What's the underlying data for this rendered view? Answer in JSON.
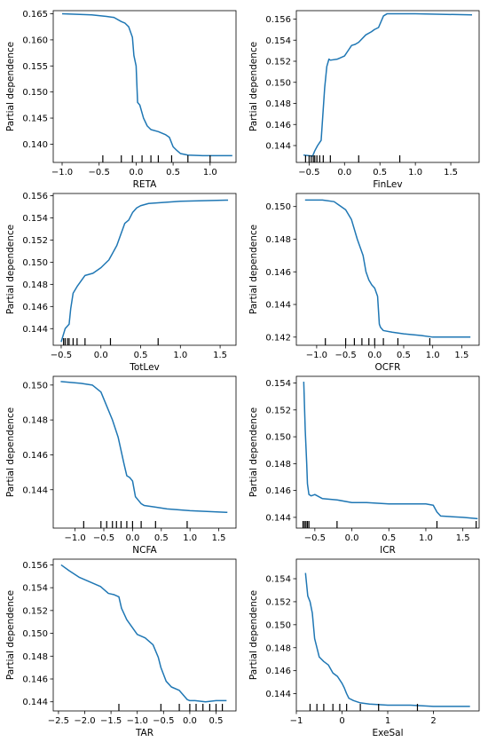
{
  "chart_data": [
    {
      "type": "line",
      "xlabel": "RETA",
      "ylabel": "Partial dependence",
      "xlim": [
        -1.12,
        1.35
      ],
      "ylim": [
        0.1365,
        0.1656
      ],
      "xticks": [
        -1.0,
        -0.5,
        0.0,
        0.5,
        1.0
      ],
      "xtick_labels": [
        "−1.0",
        "−0.5",
        "0.0",
        "0.5",
        "1.0"
      ],
      "yticks": [
        0.14,
        0.145,
        0.15,
        0.155,
        0.16,
        0.165
      ],
      "ytick_labels": [
        "0.140",
        "0.145",
        "0.150",
        "0.155",
        "0.160",
        "0.165"
      ],
      "series": [
        {
          "x": [
            -1.0,
            -0.6,
            -0.4,
            -0.3,
            -0.2,
            -0.15,
            -0.1,
            -0.05,
            -0.03,
            0.0,
            0.02,
            0.05,
            0.1,
            0.15,
            0.2,
            0.3,
            0.4,
            0.45,
            0.5,
            0.55,
            0.6,
            0.7,
            0.9,
            1.0,
            1.3
          ],
          "y": [
            0.165,
            0.1648,
            0.1645,
            0.1643,
            0.1635,
            0.1632,
            0.1625,
            0.1605,
            0.157,
            0.155,
            0.148,
            0.1475,
            0.145,
            0.1435,
            0.1428,
            0.1424,
            0.1418,
            0.1413,
            0.1395,
            0.1388,
            0.1382,
            0.1379,
            0.1378,
            0.1378,
            0.1378
          ]
        }
      ],
      "rug": [
        -0.45,
        -0.2,
        -0.05,
        0.08,
        0.2,
        0.3,
        0.48,
        0.7,
        1.0
      ]
    },
    {
      "type": "line",
      "xlabel": "FinLev",
      "ylabel": "Partial dependence",
      "xlim": [
        -0.68,
        1.9
      ],
      "ylim": [
        0.1424,
        0.1568
      ],
      "xticks": [
        -0.5,
        0.0,
        0.5,
        1.0,
        1.5
      ],
      "xtick_labels": [
        "−0.5",
        "0.0",
        "0.5",
        "1.0",
        "1.5"
      ],
      "yticks": [
        0.144,
        0.146,
        0.148,
        0.15,
        0.152,
        0.154,
        0.156
      ],
      "ytick_labels": [
        "0.144",
        "0.146",
        "0.148",
        "0.150",
        "0.152",
        "0.154",
        "0.156"
      ],
      "series": [
        {
          "x": [
            -0.58,
            -0.45,
            -0.42,
            -0.38,
            -0.33,
            -0.3,
            -0.28,
            -0.25,
            -0.22,
            -0.2,
            -0.1,
            0.0,
            0.05,
            0.1,
            0.15,
            0.2,
            0.3,
            0.38,
            0.42,
            0.48,
            0.55,
            0.6,
            1.0,
            1.8
          ],
          "y": [
            0.1431,
            0.143,
            0.1435,
            0.144,
            0.1445,
            0.1475,
            0.1495,
            0.1515,
            0.1522,
            0.1521,
            0.1522,
            0.1525,
            0.153,
            0.1535,
            0.1536,
            0.1538,
            0.1545,
            0.1548,
            0.155,
            0.1552,
            0.1563,
            0.1565,
            0.1565,
            0.1564
          ]
        }
      ],
      "rug": [
        -0.55,
        -0.5,
        -0.47,
        -0.44,
        -0.42,
        -0.39,
        -0.35,
        -0.3,
        -0.2,
        0.2,
        0.78
      ]
    },
    {
      "type": "line",
      "xlabel": "TotLev",
      "ylabel": "Partial dependence",
      "xlim": [
        -0.6,
        1.7
      ],
      "ylim": [
        0.1425,
        0.1562
      ],
      "xticks": [
        -0.5,
        0.0,
        0.5,
        1.0,
        1.5
      ],
      "xtick_labels": [
        "−0.5",
        "0.0",
        "0.5",
        "1.0",
        "1.5"
      ],
      "yticks": [
        0.144,
        0.146,
        0.148,
        0.15,
        0.152,
        0.154,
        0.156
      ],
      "ytick_labels": [
        "0.144",
        "0.146",
        "0.148",
        "0.150",
        "0.152",
        "0.154",
        "0.156"
      ],
      "series": [
        {
          "x": [
            -0.5,
            -0.45,
            -0.4,
            -0.38,
            -0.35,
            -0.3,
            -0.2,
            -0.1,
            0.0,
            0.1,
            0.2,
            0.25,
            0.3,
            0.35,
            0.4,
            0.45,
            0.5,
            0.6,
            0.8,
            1.0,
            1.6
          ],
          "y": [
            0.1428,
            0.144,
            0.1444,
            0.1458,
            0.1472,
            0.1478,
            0.1488,
            0.149,
            0.1495,
            0.1502,
            0.1515,
            0.1525,
            0.1535,
            0.1538,
            0.1545,
            0.1549,
            0.1551,
            0.1553,
            0.1554,
            0.1555,
            0.1556
          ]
        }
      ],
      "rug": [
        -0.47,
        -0.45,
        -0.42,
        -0.4,
        -0.35,
        -0.3,
        -0.2,
        0.12,
        0.72
      ]
    },
    {
      "type": "line",
      "xlabel": "OCFR",
      "ylabel": "Partial dependence",
      "xlim": [
        -1.35,
        1.8
      ],
      "ylim": [
        0.1415,
        0.1508
      ],
      "xticks": [
        -1.0,
        -0.5,
        0.0,
        0.5,
        1.0,
        1.5
      ],
      "xtick_labels": [
        "−1.0",
        "−0.5",
        "0.0",
        "0.5",
        "1.0",
        "1.5"
      ],
      "yticks": [
        0.142,
        0.144,
        0.146,
        0.148,
        0.15
      ],
      "ytick_labels": [
        "0.142",
        "0.144",
        "0.146",
        "0.148",
        "0.150"
      ],
      "series": [
        {
          "x": [
            -1.2,
            -0.9,
            -0.7,
            -0.5,
            -0.4,
            -0.3,
            -0.2,
            -0.15,
            -0.1,
            -0.05,
            0.0,
            0.05,
            0.08,
            0.1,
            0.15,
            0.3,
            0.5,
            0.8,
            1.0,
            1.65
          ],
          "y": [
            0.1504,
            0.1504,
            0.1503,
            0.1498,
            0.1492,
            0.148,
            0.147,
            0.146,
            0.1455,
            0.1452,
            0.145,
            0.1445,
            0.1428,
            0.1426,
            0.1424,
            0.1423,
            0.1422,
            0.1421,
            0.142,
            0.142
          ]
        }
      ],
      "rug": [
        -0.85,
        -0.5,
        -0.35,
        -0.22,
        -0.1,
        0.0,
        0.15,
        0.4,
        0.95
      ]
    },
    {
      "type": "line",
      "xlabel": "NCFA",
      "ylabel": "Partial dependence",
      "xlim": [
        -1.38,
        1.8
      ],
      "ylim": [
        0.1418,
        0.1505
      ],
      "xticks": [
        -1.0,
        -0.5,
        0.0,
        0.5,
        1.0,
        1.5
      ],
      "xtick_labels": [
        "−1.0",
        "−0.5",
        "0.0",
        "0.5",
        "1.0",
        "1.5"
      ],
      "yticks": [
        0.144,
        0.146,
        0.148,
        0.15
      ],
      "ytick_labels": [
        "0.144",
        "0.146",
        "0.148",
        "0.150"
      ],
      "series": [
        {
          "x": [
            -1.25,
            -0.9,
            -0.7,
            -0.55,
            -0.45,
            -0.35,
            -0.25,
            -0.15,
            -0.1,
            -0.05,
            0.0,
            0.05,
            0.1,
            0.15,
            0.2,
            0.4,
            0.6,
            1.0,
            1.65
          ],
          "y": [
            0.1502,
            0.1501,
            0.15,
            0.1496,
            0.1488,
            0.148,
            0.147,
            0.1455,
            0.1448,
            0.1447,
            0.1445,
            0.1436,
            0.1434,
            0.1432,
            0.1431,
            0.143,
            0.1429,
            0.1428,
            0.1427
          ]
        }
      ],
      "rug": [
        -0.85,
        -0.55,
        -0.45,
        -0.35,
        -0.28,
        -0.2,
        -0.1,
        0.0,
        0.15,
        0.4,
        0.95
      ]
    },
    {
      "type": "line",
      "xlabel": "ICR",
      "ylabel": "Partial dependence",
      "xlim": [
        -0.75,
        1.72
      ],
      "ylim": [
        0.1432,
        0.1545
      ],
      "xticks": [
        -0.5,
        0.0,
        0.5,
        1.0,
        1.5
      ],
      "xtick_labels": [
        "−0.5",
        "0.0",
        "0.5",
        "1.0",
        "1.5"
      ],
      "yticks": [
        0.144,
        0.146,
        0.148,
        0.15,
        0.152,
        0.154
      ],
      "ytick_labels": [
        "0.144",
        "0.146",
        "0.148",
        "0.150",
        "0.152",
        "0.154"
      ],
      "series": [
        {
          "x": [
            -0.65,
            -0.63,
            -0.61,
            -0.6,
            -0.58,
            -0.55,
            -0.5,
            -0.4,
            -0.2,
            0.0,
            0.2,
            0.5,
            0.8,
            1.0,
            1.1,
            1.15,
            1.2,
            1.5,
            1.7
          ],
          "y": [
            0.1541,
            0.1505,
            0.148,
            0.1465,
            0.1457,
            0.1456,
            0.1457,
            0.1454,
            0.1453,
            0.1451,
            0.1451,
            0.145,
            0.145,
            0.145,
            0.1449,
            0.1444,
            0.1441,
            0.144,
            0.1439
          ]
        }
      ],
      "rug": [
        -0.66,
        -0.64,
        -0.62,
        -0.6,
        -0.58,
        -0.2,
        1.15,
        1.68
      ]
    },
    {
      "type": "line",
      "xlabel": "TAR",
      "ylabel": "Partial dependence",
      "xlim": [
        -2.6,
        0.88
      ],
      "ylim": [
        0.1432,
        0.1565
      ],
      "xticks": [
        -2.5,
        -2.0,
        -1.5,
        -1.0,
        -0.5,
        0.0,
        0.5
      ],
      "xtick_labels": [
        "−2.5",
        "−2.0",
        "−1.5",
        "−1.0",
        "−0.5",
        "0.0",
        "0.5"
      ],
      "yticks": [
        0.144,
        0.146,
        0.148,
        0.15,
        0.152,
        0.154,
        0.156
      ],
      "ytick_labels": [
        "0.144",
        "0.146",
        "0.148",
        "0.150",
        "0.152",
        "0.154",
        "0.156"
      ],
      "series": [
        {
          "x": [
            -2.45,
            -2.3,
            -2.1,
            -1.9,
            -1.7,
            -1.55,
            -1.45,
            -1.35,
            -1.3,
            -1.2,
            -1.0,
            -0.85,
            -0.7,
            -0.6,
            -0.55,
            -0.45,
            -0.35,
            -0.2,
            -0.05,
            0.0,
            0.1,
            0.3,
            0.5,
            0.7
          ],
          "y": [
            0.156,
            0.1555,
            0.1549,
            0.1545,
            0.1541,
            0.1535,
            0.1534,
            0.1532,
            0.1522,
            0.1512,
            0.1499,
            0.1496,
            0.149,
            0.1479,
            0.147,
            0.1458,
            0.1453,
            0.145,
            0.1442,
            0.1441,
            0.1441,
            0.144,
            0.1441,
            0.1441
          ]
        }
      ],
      "rug": [
        -1.35,
        -0.55,
        -0.2,
        0.0,
        0.12,
        0.25,
        0.38,
        0.5,
        0.62
      ]
    },
    {
      "type": "line",
      "xlabel": "ExeSal",
      "ylabel": "Partial dependence",
      "xlim": [
        -1.0,
        3.0
      ],
      "ylim": [
        0.1425,
        0.1557
      ],
      "xticks": [
        -1,
        0,
        1,
        2
      ],
      "xtick_labels": [
        "−1",
        "0",
        "1",
        "2"
      ],
      "yticks": [
        0.144,
        0.146,
        0.148,
        0.15,
        0.152,
        0.154
      ],
      "ytick_labels": [
        "0.144",
        "0.146",
        "0.148",
        "0.150",
        "0.152",
        "0.154"
      ],
      "series": [
        {
          "x": [
            -0.8,
            -0.75,
            -0.7,
            -0.65,
            -0.6,
            -0.55,
            -0.5,
            -0.4,
            -0.3,
            -0.2,
            -0.1,
            0.0,
            0.05,
            0.1,
            0.15,
            0.25,
            0.4,
            0.6,
            1.0,
            1.5,
            2.0,
            2.8
          ],
          "y": [
            0.1545,
            0.1525,
            0.152,
            0.151,
            0.1488,
            0.148,
            0.1472,
            0.1468,
            0.1465,
            0.1458,
            0.1455,
            0.1449,
            0.1445,
            0.144,
            0.1436,
            0.1434,
            0.1432,
            0.1431,
            0.143,
            0.143,
            0.1429,
            0.1429
          ]
        }
      ],
      "rug": [
        -0.7,
        -0.55,
        -0.4,
        -0.2,
        -0.05,
        0.1,
        0.4,
        0.8,
        1.65
      ]
    }
  ],
  "colors": {
    "line": "#1f77b4",
    "axes": "#000000",
    "rug": "#000000",
    "background": "#ffffff"
  }
}
